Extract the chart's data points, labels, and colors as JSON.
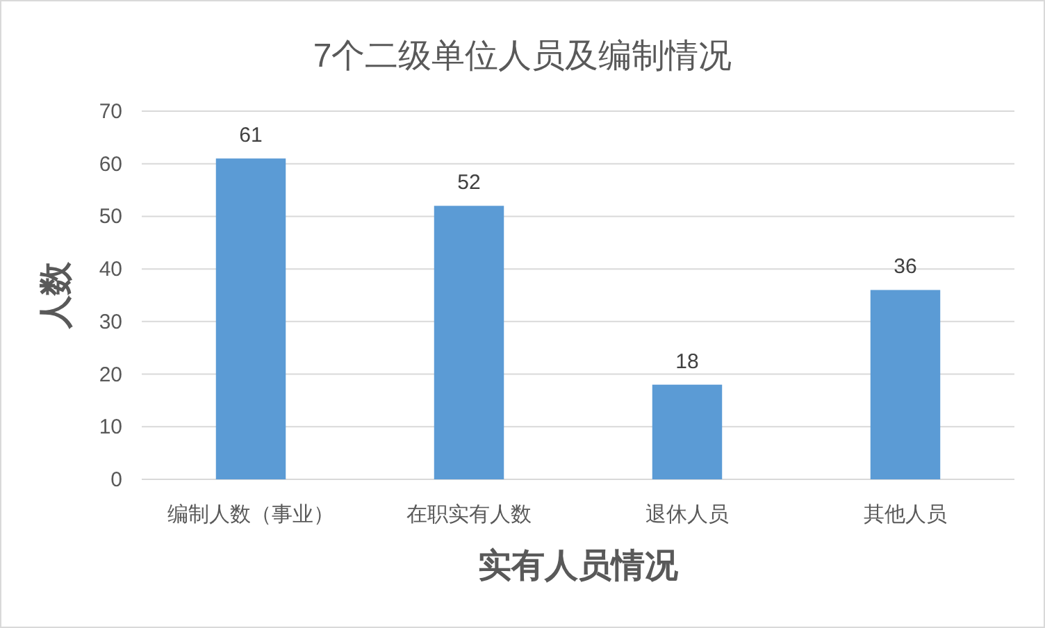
{
  "chart_data": {
    "type": "bar",
    "title": "7个二级单位人员及编制情况",
    "xlabel": "实有人员情况",
    "ylabel": "人数",
    "categories": [
      "编制人数（事业）",
      "在职实有人数",
      "退休人员",
      "其他人员"
    ],
    "values": [
      61,
      52,
      18,
      36
    ],
    "color": "#5b9bd5",
    "ylim": [
      0,
      70
    ],
    "yticks": [
      0,
      10,
      20,
      30,
      40,
      50,
      60,
      70
    ],
    "grid": "y",
    "data_labels": true
  }
}
